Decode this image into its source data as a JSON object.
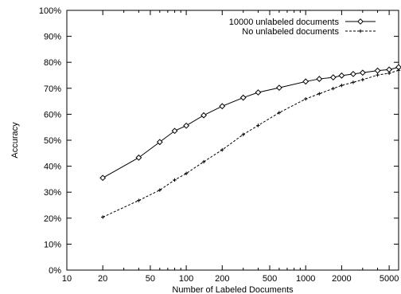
{
  "chart_data": {
    "type": "line",
    "title": "",
    "xlabel": "Number of Labeled Documents",
    "ylabel": "Accuracy",
    "xscale": "log",
    "xlim": [
      10,
      6000
    ],
    "ylim": [
      0,
      100
    ],
    "x_ticks": [
      10,
      20,
      50,
      100,
      200,
      500,
      1000,
      2000,
      5000
    ],
    "x_tick_labels": [
      "10",
      "20",
      "50",
      "100",
      "200",
      "500",
      "1000",
      "2000",
      "5000"
    ],
    "y_ticks": [
      0,
      10,
      20,
      30,
      40,
      50,
      60,
      70,
      80,
      90,
      100
    ],
    "y_tick_labels": [
      "0%",
      "10%",
      "20%",
      "30%",
      "40%",
      "50%",
      "60%",
      "70%",
      "80%",
      "90%",
      "100%"
    ],
    "grid": false,
    "legend_position": "top-right",
    "series": [
      {
        "name": "10000 unlabeled documents",
        "style": "solid",
        "marker": "diamond",
        "x": [
          20,
          40,
          60,
          80,
          100,
          140,
          200,
          300,
          400,
          600,
          1000,
          1300,
          1700,
          2000,
          2500,
          3000,
          4000,
          5000,
          6000
        ],
        "y": [
          35.5,
          43.3,
          49.3,
          53.6,
          55.6,
          59.6,
          63.1,
          66.4,
          68.4,
          70.2,
          72.6,
          73.6,
          74.2,
          74.9,
          75.5,
          76.0,
          76.8,
          77.2,
          78.1
        ]
      },
      {
        "name": "No unlabeled documents",
        "style": "dashed",
        "marker": "plus",
        "x": [
          20,
          40,
          60,
          80,
          100,
          140,
          200,
          300,
          400,
          600,
          1000,
          1300,
          1700,
          2000,
          2500,
          3000,
          4000,
          5000,
          6000
        ],
        "y": [
          20.4,
          26.8,
          30.8,
          34.7,
          37.2,
          41.7,
          46.3,
          52.2,
          55.7,
          60.6,
          65.9,
          67.9,
          69.9,
          71.1,
          72.3,
          73.3,
          75.1,
          75.8,
          76.9
        ]
      }
    ]
  }
}
